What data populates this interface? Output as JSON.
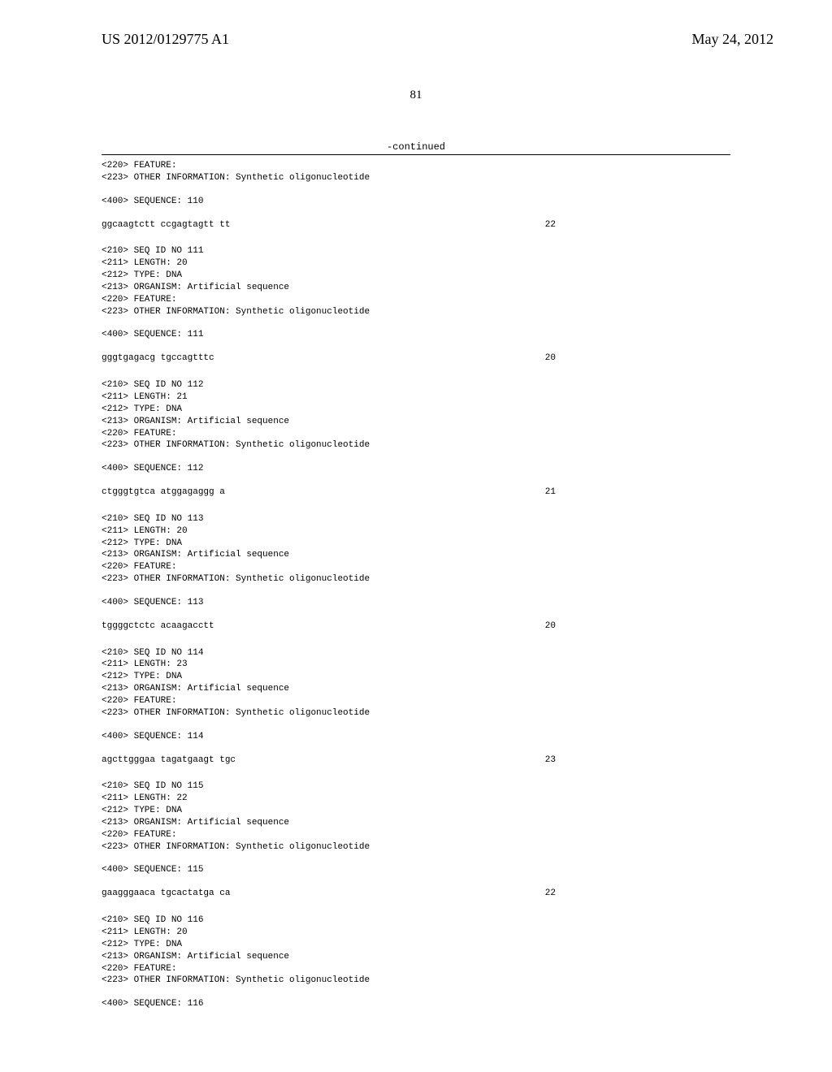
{
  "header": {
    "doc_number": "US 2012/0129775 A1",
    "doc_date": "May 24, 2012"
  },
  "page_number": "81",
  "continued_label": "-continued",
  "blocks": [
    {
      "type": "meta_partial",
      "lines": [
        "<220> FEATURE:",
        "<223> OTHER INFORMATION: Synthetic oligonucleotide"
      ]
    },
    {
      "type": "seq_header",
      "text": "<400> SEQUENCE: 110"
    },
    {
      "type": "sequence",
      "seq": "ggcaagtctt ccgagtagtt tt",
      "length": "22"
    },
    {
      "type": "meta",
      "lines": [
        "<210> SEQ ID NO 111",
        "<211> LENGTH: 20",
        "<212> TYPE: DNA",
        "<213> ORGANISM: Artificial sequence",
        "<220> FEATURE:",
        "<223> OTHER INFORMATION: Synthetic oligonucleotide"
      ]
    },
    {
      "type": "seq_header",
      "text": "<400> SEQUENCE: 111"
    },
    {
      "type": "sequence",
      "seq": "gggtgagacg tgccagtttc",
      "length": "20"
    },
    {
      "type": "meta",
      "lines": [
        "<210> SEQ ID NO 112",
        "<211> LENGTH: 21",
        "<212> TYPE: DNA",
        "<213> ORGANISM: Artificial sequence",
        "<220> FEATURE:",
        "<223> OTHER INFORMATION: Synthetic oligonucleotide"
      ]
    },
    {
      "type": "seq_header",
      "text": "<400> SEQUENCE: 112"
    },
    {
      "type": "sequence",
      "seq": "ctgggtgtca atggagaggg a",
      "length": "21"
    },
    {
      "type": "meta",
      "lines": [
        "<210> SEQ ID NO 113",
        "<211> LENGTH: 20",
        "<212> TYPE: DNA",
        "<213> ORGANISM: Artificial sequence",
        "<220> FEATURE:",
        "<223> OTHER INFORMATION: Synthetic oligonucleotide"
      ]
    },
    {
      "type": "seq_header",
      "text": "<400> SEQUENCE: 113"
    },
    {
      "type": "sequence",
      "seq": "tggggctctc acaagacctt",
      "length": "20"
    },
    {
      "type": "meta",
      "lines": [
        "<210> SEQ ID NO 114",
        "<211> LENGTH: 23",
        "<212> TYPE: DNA",
        "<213> ORGANISM: Artificial sequence",
        "<220> FEATURE:",
        "<223> OTHER INFORMATION: Synthetic oligonucleotide"
      ]
    },
    {
      "type": "seq_header",
      "text": "<400> SEQUENCE: 114"
    },
    {
      "type": "sequence",
      "seq": "agcttgggaa tagatgaagt tgc",
      "length": "23"
    },
    {
      "type": "meta",
      "lines": [
        "<210> SEQ ID NO 115",
        "<211> LENGTH: 22",
        "<212> TYPE: DNA",
        "<213> ORGANISM: Artificial sequence",
        "<220> FEATURE:",
        "<223> OTHER INFORMATION: Synthetic oligonucleotide"
      ]
    },
    {
      "type": "seq_header",
      "text": "<400> SEQUENCE: 115"
    },
    {
      "type": "sequence",
      "seq": "gaagggaaca tgcactatga ca",
      "length": "22"
    },
    {
      "type": "meta",
      "lines": [
        "<210> SEQ ID NO 116",
        "<211> LENGTH: 20",
        "<212> TYPE: DNA",
        "<213> ORGANISM: Artificial sequence",
        "<220> FEATURE:",
        "<223> OTHER INFORMATION: Synthetic oligonucleotide"
      ]
    },
    {
      "type": "seq_header_last",
      "text": "<400> SEQUENCE: 116"
    }
  ]
}
